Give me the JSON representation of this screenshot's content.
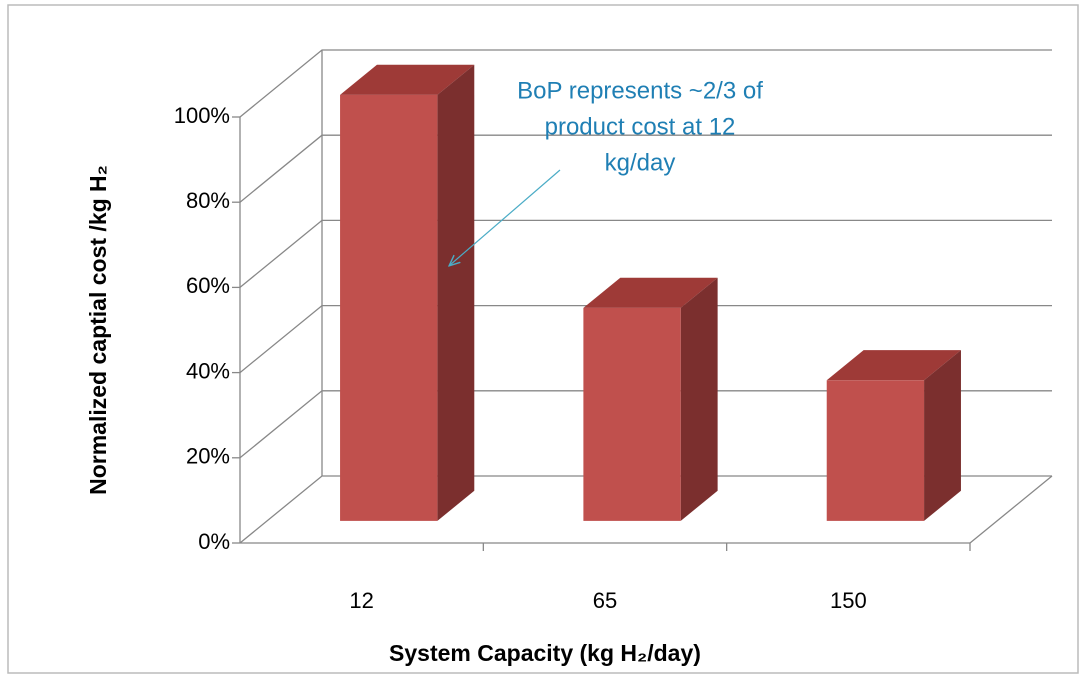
{
  "chart_data": {
    "type": "bar3d",
    "ylabel": "Normalized captial  cost /kg H₂",
    "xlabel": "System Capacity  (kg H₂/day)",
    "annotation": [
      "BoP represents ~2/3 of",
      "product cost at 12",
      "kg/day"
    ],
    "categories": [
      "12",
      "65",
      "150"
    ],
    "values": [
      100,
      50,
      33
    ],
    "color": "#c0504d",
    "ylim": [
      0,
      100
    ],
    "yticks": [
      {
        "value": 0,
        "label": "0%"
      },
      {
        "value": 20,
        "label": "20%"
      },
      {
        "value": 40,
        "label": "40%"
      },
      {
        "value": 60,
        "label": "60%"
      },
      {
        "value": 80,
        "label": "80%"
      },
      {
        "value": 100,
        "label": "100%"
      }
    ],
    "grid": true
  }
}
